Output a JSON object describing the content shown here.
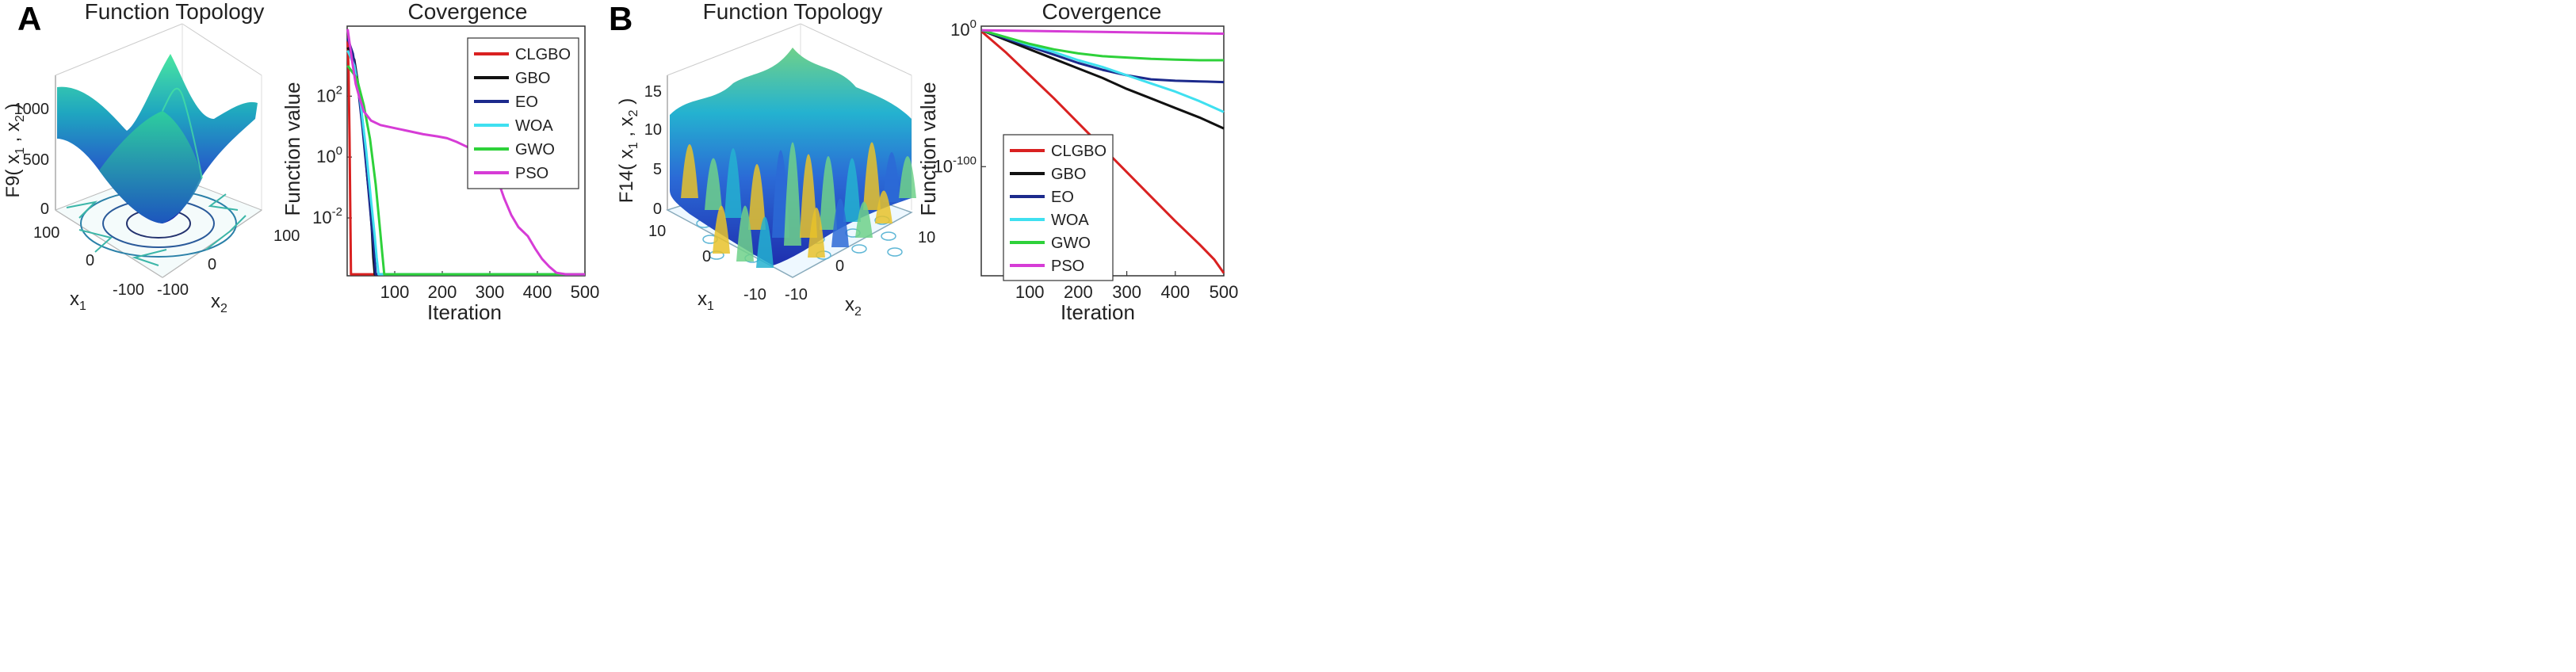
{
  "panels": {
    "A": {
      "letter": "A"
    },
    "B": {
      "letter": "B"
    }
  },
  "chart_data": [
    {
      "type": "surface3d",
      "panel": "A",
      "title": "Function Topology",
      "zlabel_main": "F9( x",
      "zlabel_sub1": "1",
      "zlabel_mid": " , x",
      "zlabel_sub2": "2",
      "zlabel_end": " )",
      "xlabel_main": "x",
      "xlabel_sub": "1",
      "ylabel_main": "x",
      "ylabel_sub": "2",
      "z_ticks": [
        "0",
        "500",
        "1000"
      ],
      "x1_ticks": [
        "100",
        "0",
        "-100"
      ],
      "x2_ticks": [
        "-100",
        "0",
        "100"
      ],
      "colormap": [
        "#1a1ea8",
        "#2563c8",
        "#1fa6c0",
        "#2fd29a",
        "#49e6a0"
      ]
    },
    {
      "type": "line",
      "panel": "A",
      "scale": "log",
      "title": "Covergence",
      "xlabel": "Iteration",
      "ylabel": "Function value",
      "xlim": [
        0,
        500
      ],
      "ylim_log10": [
        -3.9,
        4.3
      ],
      "x_ticks": [
        100,
        200,
        300,
        400,
        500
      ],
      "y_ticks": [
        {
          "base": "10",
          "exp": "2",
          "log": 2
        },
        {
          "base": "10",
          "exp": "0",
          "log": 0
        },
        {
          "base": "10",
          "exp": "-2",
          "log": -2
        }
      ],
      "series": [
        {
          "name": "CLGBO",
          "color": "#d92121",
          "x": [
            1,
            3,
            5,
            8,
            12,
            500
          ],
          "log10": [
            3.8,
            2.8,
            0.6,
            -3.85,
            -3.85,
            -3.85
          ]
        },
        {
          "name": "GBO",
          "color": "#111111",
          "x": [
            1,
            15,
            25,
            35,
            42,
            48,
            52,
            55,
            58,
            500
          ],
          "log10": [
            3.6,
            3.2,
            2.2,
            0.8,
            -0.6,
            -1.5,
            -2.4,
            -3.3,
            -3.85,
            -3.85
          ]
        },
        {
          "name": "EO",
          "color": "#1c2a8c",
          "x": [
            1,
            12,
            22,
            32,
            42,
            50,
            56,
            60,
            500
          ],
          "log10": [
            3.9,
            3.4,
            2.4,
            1.0,
            -0.6,
            -2.0,
            -3.0,
            -3.85,
            -3.85
          ]
        },
        {
          "name": "WOA",
          "color": "#3fe0f0",
          "x": [
            1,
            15,
            28,
            40,
            50,
            58,
            62,
            66,
            500
          ],
          "log10": [
            3.5,
            3.0,
            1.8,
            0.2,
            -1.4,
            -2.6,
            -3.3,
            -3.85,
            -3.85
          ]
        },
        {
          "name": "GWO",
          "color": "#2ed13a",
          "x": [
            1,
            20,
            35,
            48,
            60,
            68,
            74,
            78,
            500
          ],
          "log10": [
            3.0,
            2.6,
            1.7,
            0.6,
            -0.9,
            -2.2,
            -3.2,
            -3.85,
            -3.85
          ]
        },
        {
          "name": "PSO",
          "color": "#d63cd6",
          "x": [
            1,
            10,
            18,
            25,
            35,
            50,
            70,
            100,
            130,
            160,
            190,
            210,
            230,
            250,
            270,
            290,
            300,
            310,
            320,
            330,
            345,
            360,
            380,
            395,
            410,
            425,
            440,
            460,
            500
          ],
          "log10": [
            4.2,
            3.2,
            2.4,
            2.0,
            1.5,
            1.2,
            1.05,
            0.95,
            0.85,
            0.75,
            0.68,
            0.62,
            0.5,
            0.35,
            0.2,
            0.0,
            -0.2,
            -0.5,
            -0.9,
            -1.35,
            -1.9,
            -2.3,
            -2.6,
            -3.0,
            -3.35,
            -3.6,
            -3.8,
            -3.85,
            -3.85
          ]
        }
      ]
    },
    {
      "type": "surface3d",
      "panel": "B",
      "title": "Function Topology",
      "zlabel_main": "F14( x",
      "zlabel_sub1": "1",
      "zlabel_mid": " , x",
      "zlabel_sub2": "2",
      "zlabel_end": " )",
      "xlabel_main": "x",
      "xlabel_sub": "1",
      "ylabel_main": "x",
      "ylabel_sub": "2",
      "z_ticks": [
        "0",
        "5",
        "10",
        "15"
      ],
      "x1_ticks": [
        "10",
        "0",
        "-10"
      ],
      "x2_ticks": [
        "-10",
        "0",
        "10"
      ],
      "colormap": [
        "#1e2fae",
        "#2b6ad6",
        "#24b2d0",
        "#6fd18a",
        "#e8c22a"
      ]
    },
    {
      "type": "line",
      "panel": "B",
      "scale": "log",
      "title": "Covergence",
      "xlabel": "Iteration",
      "ylabel": "Function value",
      "xlim": [
        0,
        500
      ],
      "ylim_log10": [
        -180,
        3
      ],
      "x_ticks": [
        100,
        200,
        300,
        400,
        500
      ],
      "y_ticks": [
        {
          "base": "10",
          "exp": "0",
          "log": 0
        },
        {
          "base": "10",
          "exp": "-100",
          "log": -100
        }
      ],
      "series": [
        {
          "name": "CLGBO",
          "color": "#d92121",
          "x": [
            1,
            50,
            100,
            150,
            200,
            250,
            300,
            350,
            400,
            450,
            480,
            500
          ],
          "log10": [
            -1,
            -16,
            -33,
            -50,
            -68,
            -86,
            -104,
            -122,
            -140,
            -157,
            -168,
            -178
          ]
        },
        {
          "name": "GBO",
          "color": "#111111",
          "x": [
            1,
            50,
            100,
            150,
            200,
            250,
            300,
            350,
            400,
            450,
            500
          ],
          "log10": [
            0,
            -7,
            -14,
            -21,
            -28,
            -35,
            -43,
            -50,
            -57,
            -64,
            -72
          ]
        },
        {
          "name": "EO",
          "color": "#1c2a8c",
          "x": [
            1,
            50,
            100,
            150,
            200,
            250,
            300,
            350,
            400,
            450,
            500
          ],
          "log10": [
            0,
            -6,
            -12,
            -18,
            -24,
            -29,
            -33,
            -36,
            -37,
            -37.5,
            -38
          ]
        },
        {
          "name": "WOA",
          "color": "#3fe0f0",
          "x": [
            1,
            50,
            100,
            150,
            200,
            250,
            300,
            350,
            400,
            450,
            500
          ],
          "log10": [
            0,
            -5,
            -11,
            -16,
            -22,
            -27,
            -33,
            -39,
            -45,
            -52,
            -60
          ]
        },
        {
          "name": "GWO",
          "color": "#2ed13a",
          "x": [
            1,
            50,
            100,
            150,
            200,
            250,
            300,
            350,
            400,
            450,
            500
          ],
          "log10": [
            0,
            -5,
            -10,
            -14,
            -17,
            -19,
            -20,
            -21,
            -21.5,
            -22,
            -22
          ]
        },
        {
          "name": "PSO",
          "color": "#d63cd6",
          "x": [
            1,
            100,
            200,
            300,
            400,
            500
          ],
          "log10": [
            0,
            -0.5,
            -1,
            -1.5,
            -2,
            -2.5
          ]
        }
      ]
    }
  ]
}
